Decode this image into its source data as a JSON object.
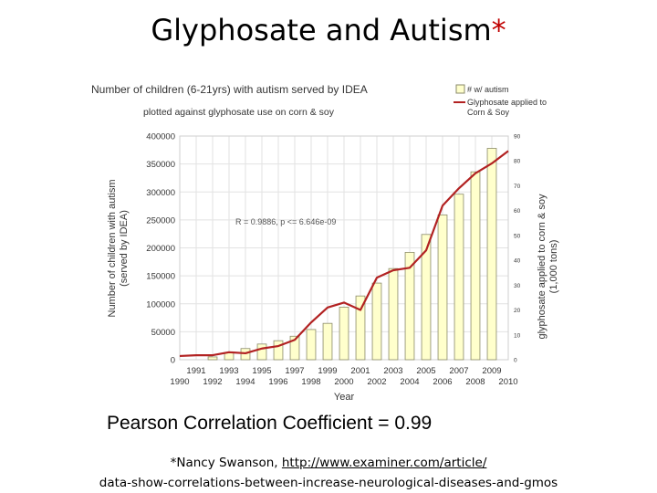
{
  "slide": {
    "title": "Glyphosate and Autism",
    "title_marker": "*",
    "subtitle": "Pearson Correlation Coefficient = 0.99",
    "citation_prefix": "*Nancy Swanson, ",
    "citation_link": "http://www.examiner.com/article/",
    "citation_line2": "data-show-correlations-between-increase-neurological-diseases-and-gmos"
  },
  "colors": {
    "bar_fill": "#ffffcc",
    "bar_stroke": "#8a8a6a",
    "line": "#b22222",
    "grid": "#e2e2e2",
    "text": "#333333",
    "title_marker": "#c00000"
  },
  "chart_data": {
    "type": "bar",
    "title": "Number of children (6-21yrs) with autism served by IDEA",
    "subtitle": "plotted against glyphosate use on corn & soy",
    "xlabel": "Year",
    "ylabel_lines": [
      "Number of children with autism",
      "(served by IDEA)"
    ],
    "y2label_lines": [
      "glyphosate applied to corn & soy",
      "(1,000 tons)"
    ],
    "legend_placement": "top-right",
    "legend": [
      "# w/ autism",
      "Glyphosate applied to",
      "Corn & Soy"
    ],
    "annotation": "R = 0.9886, p <= 6.646e-09",
    "grid": true,
    "xlim": [
      1990,
      2010
    ],
    "ylim": [
      0,
      400000
    ],
    "y2lim": [
      0,
      90
    ],
    "x_ticks_odd": [
      "1991",
      "1993",
      "1995",
      "1997",
      "1999",
      "2001",
      "2003",
      "2005",
      "2007",
      "2009"
    ],
    "x_ticks_even": [
      "1990",
      "1992",
      "1994",
      "1996",
      "1998",
      "2000",
      "2002",
      "2004",
      "2006",
      "2008",
      "2010"
    ],
    "y_ticks": [
      "0",
      "50000",
      "100000",
      "150000",
      "200000",
      "250000",
      "300000",
      "350000",
      "400000"
    ],
    "y2_ticks": [
      "0",
      "10",
      "20",
      "30",
      "40",
      "50",
      "60",
      "70",
      "80",
      "90"
    ],
    "series": [
      {
        "name": "# w/ autism",
        "type": "bar",
        "x": [
          1992,
          1993,
          1994,
          1995,
          1996,
          1997,
          1998,
          1999,
          2000,
          2001,
          2002,
          2003,
          2004,
          2005,
          2006,
          2007,
          2008,
          2009
        ],
        "values": [
          5000,
          13000,
          20000,
          28000,
          34000,
          42000,
          54000,
          65000,
          94000,
          114000,
          137000,
          163000,
          192000,
          224000,
          259000,
          296000,
          336000,
          378000
        ]
      },
      {
        "name": "Glyphosate applied to Corn & Soy",
        "type": "line",
        "axis": "right",
        "x": [
          1990,
          1991,
          1992,
          1993,
          1994,
          1995,
          1996,
          1997,
          1998,
          1999,
          2000,
          2001,
          2002,
          2003,
          2004,
          2005,
          2006,
          2007,
          2008,
          2009,
          2010
        ],
        "values": [
          1.5,
          1.8,
          1.8,
          3,
          2.6,
          4.5,
          5.5,
          8,
          15,
          21,
          23,
          20,
          33,
          36,
          37,
          44,
          62,
          69,
          75,
          79,
          84
        ]
      }
    ]
  }
}
